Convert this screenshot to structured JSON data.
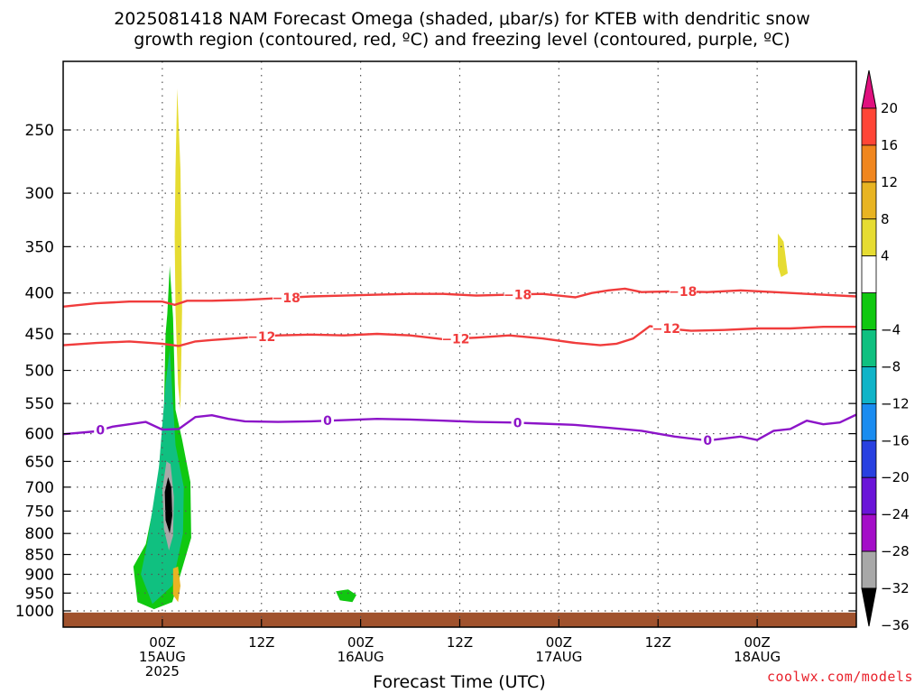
{
  "title_line1": "2025081418 NAM Forecast Omega (shaded, μbar/s) for KTEB with dendritic snow",
  "title_line2": "growth region (contoured, red, ºC) and freezing level (contoured, purple, ºC)",
  "watermark": "coolwx.com/models",
  "chart_data": {
    "type": "time-height cross section",
    "title": "2025081418 NAM Forecast Omega (shaded, μbar/s) for KTEB with dendritic snow growth region (contoured, red, ºC) and freezing level (contoured, purple, ºC)",
    "xlabel": "Forecast Time (UTC)",
    "ylabel": "",
    "y_axis": {
      "units": "hPa",
      "ticks": [
        250,
        300,
        350,
        400,
        450,
        500,
        550,
        600,
        650,
        700,
        750,
        800,
        850,
        900,
        950,
        1000
      ],
      "range": [
        1000,
        210
      ],
      "scale": "log"
    },
    "x_axis": {
      "range_hours": [
        -12,
        84
      ],
      "ticks": [
        {
          "hour": 0,
          "lines": [
            "00Z",
            "15AUG",
            "2025"
          ]
        },
        {
          "hour": 12,
          "lines": [
            "12Z"
          ]
        },
        {
          "hour": 24,
          "lines": [
            "00Z",
            "16AUG"
          ]
        },
        {
          "hour": 36,
          "lines": [
            "12Z"
          ]
        },
        {
          "hour": 48,
          "lines": [
            "00Z",
            "17AUG"
          ]
        },
        {
          "hour": 60,
          "lines": [
            "12Z"
          ]
        },
        {
          "hour": 72,
          "lines": [
            "00Z",
            "18AUG"
          ]
        }
      ]
    },
    "grid": true,
    "colorbar": {
      "label_values": [
        20,
        16,
        12,
        8,
        4,
        -4,
        -8,
        -12,
        -16,
        -20,
        -24,
        -28,
        -32,
        -36
      ],
      "bins": [
        {
          "range": ">20",
          "color": "#e0107e"
        },
        {
          "range": "16 to 20",
          "color": "#ff4536"
        },
        {
          "range": "12 to 16",
          "color": "#f0861e"
        },
        {
          "range": "8 to 12",
          "color": "#e8b422"
        },
        {
          "range": "4 to 8",
          "color": "#e6dc32"
        },
        {
          "range": "-4 to 4",
          "color": "#ffffff"
        },
        {
          "range": "-8 to -4",
          "color": "#10c810"
        },
        {
          "range": "-12 to -8",
          "color": "#10c080"
        },
        {
          "range": "-16 to -12",
          "color": "#10b4c8"
        },
        {
          "range": "-20 to -16",
          "color": "#1a8cf0"
        },
        {
          "range": "-24 to -20",
          "color": "#2840e0"
        },
        {
          "range": "-28 to -24",
          "color": "#6a14d8"
        },
        {
          "range": "-32 to -28",
          "color": "#a40ec8"
        },
        {
          "range": "-36 to -32",
          "color": "#a8a8a8"
        },
        {
          "range": "<-36",
          "color": "#000000"
        }
      ]
    },
    "contours": [
      {
        "label": "-18",
        "color": "#f03c3c",
        "points": [
          [
            -12,
            416
          ],
          [
            -8,
            412
          ],
          [
            -4,
            410
          ],
          [
            0,
            410
          ],
          [
            1.5,
            414
          ],
          [
            3,
            409
          ],
          [
            6,
            409
          ],
          [
            10,
            408
          ],
          [
            14,
            406
          ],
          [
            18,
            404
          ],
          [
            22,
            403
          ],
          [
            26,
            402
          ],
          [
            30,
            401
          ],
          [
            34,
            401
          ],
          [
            38,
            403
          ],
          [
            42,
            402
          ],
          [
            46,
            401
          ],
          [
            50,
            405
          ],
          [
            52,
            400
          ],
          [
            54,
            397
          ],
          [
            56,
            395
          ],
          [
            58,
            399
          ],
          [
            62,
            398
          ],
          [
            66,
            399
          ],
          [
            70,
            397
          ],
          [
            74,
            399
          ],
          [
            78,
            401
          ],
          [
            84,
            404
          ]
        ],
        "label_hours": [
          15,
          43,
          63
        ]
      },
      {
        "label": "-12",
        "color": "#f03c3c",
        "points": [
          [
            -12,
            465
          ],
          [
            -8,
            462
          ],
          [
            -4,
            460
          ],
          [
            0,
            463
          ],
          [
            2,
            466
          ],
          [
            4,
            460
          ],
          [
            6,
            458
          ],
          [
            10,
            455
          ],
          [
            14,
            452
          ],
          [
            18,
            451
          ],
          [
            22,
            452
          ],
          [
            26,
            450
          ],
          [
            30,
            452
          ],
          [
            34,
            457
          ],
          [
            38,
            455
          ],
          [
            42,
            452
          ],
          [
            46,
            456
          ],
          [
            50,
            462
          ],
          [
            53,
            465
          ],
          [
            55,
            463
          ],
          [
            57,
            456
          ],
          [
            59,
            440
          ],
          [
            61,
            443
          ],
          [
            64,
            446
          ],
          [
            68,
            445
          ],
          [
            72,
            443
          ],
          [
            76,
            443
          ],
          [
            80,
            441
          ],
          [
            84,
            441
          ]
        ],
        "label_hours": [
          12,
          35.5,
          61
        ]
      },
      {
        "label": "0",
        "color": "#8c14c8",
        "points": [
          [
            -12,
            601
          ],
          [
            -8,
            596
          ],
          [
            -6,
            588
          ],
          [
            -4,
            584
          ],
          [
            -2,
            580
          ],
          [
            0,
            593
          ],
          [
            2,
            592
          ],
          [
            4,
            572
          ],
          [
            6,
            569
          ],
          [
            8,
            575
          ],
          [
            10,
            579
          ],
          [
            14,
            580
          ],
          [
            18,
            579
          ],
          [
            22,
            577
          ],
          [
            26,
            575
          ],
          [
            30,
            576
          ],
          [
            34,
            578
          ],
          [
            38,
            580
          ],
          [
            42,
            581
          ],
          [
            46,
            583
          ],
          [
            50,
            585
          ],
          [
            54,
            590
          ],
          [
            58,
            595
          ],
          [
            62,
            605
          ],
          [
            66,
            612
          ],
          [
            70,
            605
          ],
          [
            72,
            611
          ],
          [
            74,
            595
          ],
          [
            76,
            592
          ],
          [
            78,
            578
          ],
          [
            80,
            584
          ],
          [
            82,
            581
          ],
          [
            84,
            568
          ]
        ],
        "label_hours": [
          -7.5,
          20,
          43,
          66
        ]
      }
    ],
    "shaded_regions": [
      {
        "omega_bin": "4 to 8",
        "description": "upper-level rising-omega plume near 00Z 15AUG",
        "polygon": [
          [
            1.6,
            280
          ],
          [
            1.8,
            222
          ],
          [
            2.2,
            280
          ],
          [
            2.4,
            420
          ],
          [
            2.2,
            560
          ],
          [
            1.9,
            520
          ],
          [
            1.6,
            420
          ],
          [
            1.5,
            340
          ]
        ]
      },
      {
        "omega_bin": "4 to 8",
        "description": "small area near 06Z 18AUG",
        "polygon": [
          [
            74.5,
            337
          ],
          [
            75.2,
            345
          ],
          [
            75.7,
            378
          ],
          [
            74.9,
            382
          ],
          [
            74.5,
            370
          ]
        ]
      },
      {
        "omega_bin": "-8 to -4",
        "description": "deep subsidence column near 00Z 15AUG",
        "polygon": [
          [
            0.6,
            425
          ],
          [
            0.9,
            370
          ],
          [
            1.3,
            430
          ],
          [
            1.6,
            560
          ],
          [
            2.4,
            610
          ],
          [
            3.4,
            690
          ],
          [
            3.5,
            810
          ],
          [
            2.2,
            900
          ],
          [
            1.2,
            975
          ],
          [
            -1.0,
            995
          ],
          [
            -3.0,
            975
          ],
          [
            -3.5,
            880
          ],
          [
            -2.0,
            825
          ],
          [
            -0.6,
            700
          ],
          [
            0.2,
            560
          ],
          [
            0.4,
            450
          ]
        ]
      },
      {
        "omega_bin": "-8 to -4",
        "description": "small area near 21Z 15AUG",
        "polygon": [
          [
            21,
            945
          ],
          [
            22.5,
            940
          ],
          [
            23.5,
            955
          ],
          [
            23,
            975
          ],
          [
            21.5,
            970
          ]
        ]
      },
      {
        "omega_bin": "-36 to -32",
        "description": "core of strongest descent",
        "polygon": [
          [
            0.5,
            650
          ],
          [
            1.0,
            655
          ],
          [
            1.4,
            720
          ],
          [
            1.3,
            805
          ],
          [
            0.8,
            840
          ],
          [
            0.2,
            790
          ],
          [
            0.0,
            705
          ]
        ]
      },
      {
        "omega_bin": "<-36",
        "description": "darkest core",
        "polygon": [
          [
            0.7,
            680
          ],
          [
            1.1,
            700
          ],
          [
            1.2,
            760
          ],
          [
            0.9,
            800
          ],
          [
            0.4,
            770
          ],
          [
            0.3,
            710
          ]
        ]
      },
      {
        "omega_bin": "8 to 12",
        "description": "low-level small area",
        "polygon": [
          [
            1.3,
            885
          ],
          [
            1.9,
            880
          ],
          [
            2.2,
            930
          ],
          [
            1.9,
            975
          ],
          [
            1.3,
            955
          ]
        ]
      }
    ],
    "terrain": {
      "color": "#a0522d",
      "surface_hPa": 1010
    }
  }
}
